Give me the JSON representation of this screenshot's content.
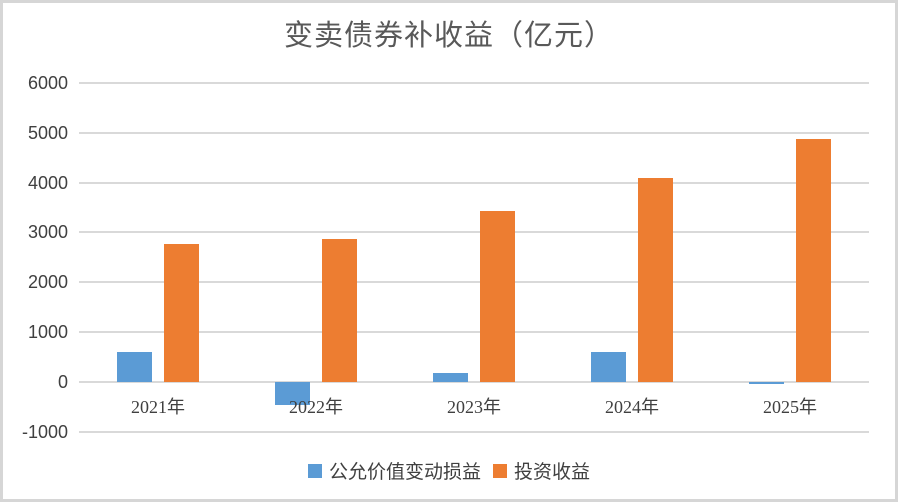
{
  "chart_data": {
    "type": "bar",
    "title": "变卖债券补收益（亿元）",
    "categories": [
      "2021年",
      "2022年",
      "2023年",
      "2024年",
      "2025年"
    ],
    "series": [
      {
        "name": "公允价值变动损益",
        "color": "#5B9BD5",
        "values": [
          590,
          -470,
          180,
          600,
          -50
        ]
      },
      {
        "name": "投资收益",
        "color": "#ED7D31",
        "values": [
          2760,
          2870,
          3420,
          4090,
          4880
        ]
      }
    ],
    "ylim": [
      -1000,
      6000
    ],
    "ytick_step": 1000,
    "y_tick_labels": [
      "6000",
      "5000",
      "4000",
      "3000",
      "2000",
      "1000",
      "0",
      "-1000"
    ],
    "grid": true,
    "legend_position": "bottom"
  },
  "colors": {
    "series_blue": "#5B9BD5",
    "series_orange": "#ED7D31",
    "gridline": "#D9D9D9",
    "axis_text": "#404040",
    "title_text": "#595959",
    "chart_border": "#D6D6D6",
    "background": "#FFFFFF"
  }
}
